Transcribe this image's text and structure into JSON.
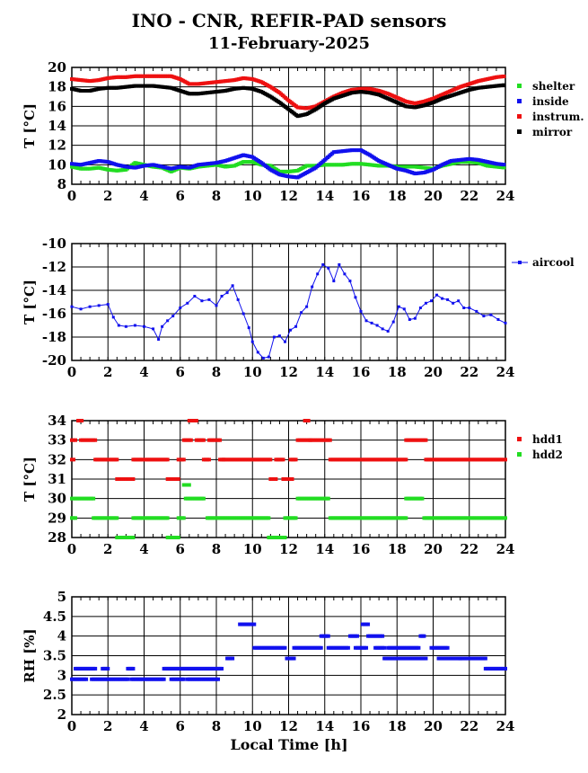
{
  "title": "INO - CNR, REFIR-PAD sensors",
  "subtitle": "11-February-2025",
  "xlabel": "Local Time [h]",
  "colors": {
    "green": "#22dd22",
    "blue": "#1111ee",
    "red": "#ee1111",
    "black": "#000000"
  },
  "chart_data": [
    {
      "type": "scatter",
      "ylabel": "T [°C]",
      "xlim": [
        0,
        24
      ],
      "ylim": [
        8,
        20
      ],
      "xticks": [
        0,
        2,
        4,
        6,
        8,
        10,
        12,
        14,
        16,
        18,
        20,
        22,
        24
      ],
      "yticks": [
        8,
        10,
        12,
        14,
        16,
        18,
        20
      ],
      "grid": true,
      "legend": "right",
      "series": [
        {
          "name": "shelter",
          "color": "#22dd22",
          "x": [
            0,
            0.5,
            1,
            1.5,
            2,
            2.5,
            3,
            3.5,
            4,
            4.5,
            5,
            5.5,
            6,
            6.5,
            7,
            7.5,
            8,
            8.5,
            9,
            9.5,
            10,
            10.5,
            11,
            11.5,
            12,
            12.5,
            13,
            13.5,
            14,
            14.5,
            15,
            15.5,
            16,
            16.5,
            17,
            17.5,
            18,
            18.5,
            19,
            19.5,
            20,
            20.5,
            21,
            21.5,
            22,
            22.5,
            23,
            23.5,
            24
          ],
          "y": [
            9.8,
            9.6,
            9.6,
            9.7,
            9.5,
            9.4,
            9.5,
            10.2,
            10,
            9.8,
            9.7,
            9.3,
            9.7,
            9.6,
            9.8,
            9.9,
            10,
            9.8,
            9.9,
            10.3,
            10.3,
            10,
            9.9,
            9.3,
            9.3,
            9.4,
            9.9,
            9.9,
            10,
            10,
            10,
            10.1,
            10.1,
            10,
            9.9,
            9.9,
            9.8,
            9.8,
            9.8,
            9.7,
            9.6,
            9.9,
            10.1,
            10.3,
            10.3,
            10.2,
            9.9,
            9.8,
            9.7
          ]
        },
        {
          "name": "inside",
          "color": "#1111ee",
          "x": [
            0,
            0.5,
            1,
            1.5,
            2,
            2.5,
            3,
            3.5,
            4,
            4.5,
            5,
            5.5,
            6,
            6.5,
            7,
            7.5,
            8,
            8.5,
            9,
            9.5,
            10,
            10.5,
            11,
            11.5,
            12,
            12.5,
            13,
            13.5,
            14,
            14.5,
            15,
            15.5,
            16,
            16.5,
            17,
            17.5,
            18,
            18.5,
            19,
            19.5,
            20,
            20.5,
            21,
            21.5,
            22,
            22.5,
            23,
            23.5,
            24
          ],
          "y": [
            10.1,
            10,
            10.2,
            10.4,
            10.3,
            10,
            9.8,
            9.7,
            9.9,
            10,
            9.8,
            9.6,
            9.8,
            9.7,
            10,
            10.1,
            10.2,
            10.4,
            10.7,
            11,
            10.8,
            10.2,
            9.5,
            9,
            8.8,
            8.7,
            9.2,
            9.7,
            10.5,
            11.3,
            11.4,
            11.5,
            11.5,
            11,
            10.4,
            10,
            9.6,
            9.4,
            9.1,
            9.2,
            9.5,
            10,
            10.4,
            10.5,
            10.6,
            10.5,
            10.3,
            10.1,
            10
          ]
        },
        {
          "name": "instrum.",
          "color": "#ee1111",
          "x": [
            0,
            0.5,
            1,
            1.5,
            2,
            2.5,
            3,
            3.5,
            4,
            4.5,
            5,
            5.5,
            6,
            6.5,
            7,
            7.5,
            8,
            8.5,
            9,
            9.5,
            10,
            10.5,
            11,
            11.5,
            12,
            12.5,
            13,
            13.5,
            14,
            14.5,
            15,
            15.5,
            16,
            16.5,
            17,
            17.5,
            18,
            18.5,
            19,
            19.5,
            20,
            20.5,
            21,
            21.5,
            22,
            22.5,
            23,
            23.5,
            24
          ],
          "y": [
            18.8,
            18.7,
            18.6,
            18.7,
            18.9,
            19,
            19,
            19.1,
            19.1,
            19.1,
            19.1,
            19.1,
            18.8,
            18.3,
            18.3,
            18.4,
            18.5,
            18.6,
            18.7,
            18.9,
            18.8,
            18.5,
            18,
            17.4,
            16.6,
            15.9,
            15.8,
            16,
            16.5,
            17,
            17.4,
            17.7,
            17.8,
            17.8,
            17.6,
            17.3,
            16.9,
            16.5,
            16.3,
            16.5,
            16.8,
            17.2,
            17.6,
            18,
            18.3,
            18.6,
            18.8,
            19,
            19.1
          ]
        },
        {
          "name": "mirror",
          "color": "#000000",
          "x": [
            0,
            0.5,
            1,
            1.5,
            2,
            2.5,
            3,
            3.5,
            4,
            4.5,
            5,
            5.5,
            6,
            6.5,
            7,
            7.5,
            8,
            8.5,
            9,
            9.5,
            10,
            10.5,
            11,
            11.5,
            12,
            12.5,
            13,
            13.5,
            14,
            14.5,
            15,
            15.5,
            16,
            16.5,
            17,
            17.5,
            18,
            18.5,
            19,
            19.5,
            20,
            20.5,
            21,
            21.5,
            22,
            22.5,
            23,
            23.5,
            24
          ],
          "y": [
            17.8,
            17.6,
            17.6,
            17.8,
            17.9,
            17.9,
            18,
            18.1,
            18.1,
            18.1,
            18,
            17.9,
            17.6,
            17.3,
            17.3,
            17.4,
            17.5,
            17.6,
            17.8,
            17.9,
            17.8,
            17.5,
            17,
            16.4,
            15.7,
            15,
            15.2,
            15.7,
            16.3,
            16.8,
            17.1,
            17.4,
            17.5,
            17.4,
            17.2,
            16.8,
            16.4,
            16,
            15.9,
            16.1,
            16.4,
            16.8,
            17.1,
            17.4,
            17.7,
            17.9,
            18,
            18.1,
            18.2
          ]
        }
      ]
    },
    {
      "type": "line",
      "ylabel": "T [°C]",
      "xlim": [
        0,
        24
      ],
      "ylim": [
        -20,
        -10
      ],
      "xticks": [
        0,
        2,
        4,
        6,
        8,
        10,
        12,
        14,
        16,
        18,
        20,
        22,
        24
      ],
      "yticks": [
        -20,
        -18,
        -16,
        -14,
        -12,
        -10
      ],
      "grid": true,
      "legend": "right",
      "series": [
        {
          "name": "aircool",
          "color": "#1111ee",
          "x": [
            0,
            0.5,
            1,
            1.5,
            2,
            2.3,
            2.6,
            3,
            3.5,
            4,
            4.5,
            4.8,
            5,
            5.3,
            5.6,
            6,
            6.4,
            6.8,
            7.2,
            7.6,
            8,
            8.3,
            8.6,
            8.9,
            9.2,
            9.5,
            9.8,
            10,
            10.3,
            10.6,
            10.9,
            11.2,
            11.5,
            11.8,
            12.1,
            12.4,
            12.7,
            13,
            13.3,
            13.6,
            13.9,
            14.2,
            14.5,
            14.8,
            15.1,
            15.4,
            15.7,
            16,
            16.3,
            16.6,
            16.9,
            17.2,
            17.5,
            17.8,
            18.1,
            18.4,
            18.7,
            19,
            19.3,
            19.6,
            19.9,
            20.2,
            20.5,
            20.8,
            21.1,
            21.4,
            21.7,
            22,
            22.4,
            22.8,
            23.2,
            23.6,
            24
          ],
          "y": [
            -15.4,
            -15.6,
            -15.4,
            -15.3,
            -15.2,
            -16.3,
            -17,
            -17.1,
            -17,
            -17.1,
            -17.3,
            -18.2,
            -17.1,
            -16.6,
            -16.2,
            -15.5,
            -15.1,
            -14.5,
            -14.9,
            -14.8,
            -15.3,
            -14.5,
            -14.2,
            -13.6,
            -14.8,
            -16,
            -17.2,
            -18.4,
            -19.3,
            -19.8,
            -19.7,
            -18,
            -17.9,
            -18.4,
            -17.4,
            -17.1,
            -15.9,
            -15.4,
            -13.7,
            -12.6,
            -11.8,
            -12.1,
            -13.2,
            -11.8,
            -12.6,
            -13.2,
            -14.6,
            -15.8,
            -16.6,
            -16.8,
            -17,
            -17.3,
            -17.5,
            -16.7,
            -15.4,
            -15.6,
            -16.5,
            -16.4,
            -15.5,
            -15.1,
            -14.9,
            -14.4,
            -14.7,
            -14.8,
            -15.1,
            -14.9,
            -15.5,
            -15.5,
            -15.8,
            -16.2,
            -16.1,
            -16.5,
            -16.8
          ]
        }
      ]
    },
    {
      "type": "scatter",
      "ylabel": "T [°C]",
      "xlim": [
        0,
        24
      ],
      "ylim": [
        28,
        34
      ],
      "xticks": [
        0,
        2,
        4,
        6,
        8,
        10,
        12,
        14,
        16,
        18,
        20,
        22,
        24
      ],
      "yticks": [
        28,
        29,
        30,
        31,
        32,
        33,
        34
      ],
      "grid": true,
      "legend": "right",
      "series": [
        {
          "name": "hdd1",
          "color": "#ee1111",
          "segments": [
            [
              0,
              0.1,
              32
            ],
            [
              0,
              0.2,
              33
            ],
            [
              0.35,
              0.55,
              34
            ],
            [
              0.5,
              1.3,
              33
            ],
            [
              1.3,
              2.5,
              32
            ],
            [
              2.5,
              3.4,
              31
            ],
            [
              3.4,
              5.3,
              32
            ],
            [
              5.3,
              5.9,
              31
            ],
            [
              5.9,
              6.2,
              32
            ],
            [
              6.2,
              6.6,
              33
            ],
            [
              6.5,
              6.9,
              34
            ],
            [
              6.9,
              7.3,
              33
            ],
            [
              7.3,
              7.6,
              32
            ],
            [
              7.6,
              8.2,
              33
            ],
            [
              8.2,
              8.4,
              32
            ],
            [
              8.4,
              11,
              32
            ],
            [
              11,
              11.3,
              31
            ],
            [
              11.3,
              11.7,
              32
            ],
            [
              11.7,
              11.9,
              31
            ],
            [
              11.9,
              12.2,
              31
            ],
            [
              12.1,
              12.4,
              32
            ],
            [
              12.5,
              13.2,
              33
            ],
            [
              12.9,
              13.1,
              34
            ],
            [
              13.2,
              14.3,
              33
            ],
            [
              14.3,
              18.5,
              32
            ],
            [
              18.5,
              19.6,
              33
            ],
            [
              19.6,
              24,
              32
            ]
          ]
        },
        {
          "name": "hdd2",
          "color": "#22dd22",
          "segments": [
            [
              0,
              0.2,
              29
            ],
            [
              0,
              1.2,
              30
            ],
            [
              1.2,
              2.5,
              29
            ],
            [
              2.5,
              3.4,
              28
            ],
            [
              3.4,
              5.3,
              29
            ],
            [
              5.3,
              5.9,
              28
            ],
            [
              5.9,
              6.2,
              29
            ],
            [
              6.2,
              6.5,
              30.7
            ],
            [
              6.3,
              7.3,
              30
            ],
            [
              7.5,
              10.9,
              29
            ],
            [
              10.9,
              11.8,
              28
            ],
            [
              11.8,
              12.4,
              29
            ],
            [
              12.5,
              14.2,
              30
            ],
            [
              14.3,
              18.5,
              29
            ],
            [
              18.5,
              19.4,
              30
            ],
            [
              19.5,
              24,
              29
            ]
          ]
        }
      ]
    },
    {
      "type": "scatter",
      "ylabel": "RH [%]",
      "xlim": [
        0,
        24
      ],
      "ylim": [
        2,
        5
      ],
      "xticks": [
        0,
        2,
        4,
        6,
        8,
        10,
        12,
        14,
        16,
        18,
        20,
        22,
        24
      ],
      "yticks": [
        2,
        2.5,
        3,
        3.5,
        4,
        4.5,
        5
      ],
      "ytick_labels": [
        "2",
        "2.5",
        "3",
        "3.5",
        "4",
        "4.5",
        "5"
      ],
      "grid": true,
      "legend": "none",
      "series": [
        {
          "name": "",
          "color": "#1111ee",
          "segments": [
            [
              0,
              0.4,
              2.9
            ],
            [
              0.2,
              1.3,
              3.17
            ],
            [
              0.5,
              0.8,
              2.9
            ],
            [
              1.7,
              2.0,
              3.17
            ],
            [
              1.1,
              3.1,
              2.9
            ],
            [
              3.1,
              3.4,
              3.17
            ],
            [
              3.3,
              5.1,
              2.9
            ],
            [
              5.1,
              6.4,
              3.17
            ],
            [
              5.5,
              6.2,
              2.9
            ],
            [
              6.4,
              7.4,
              2.9
            ],
            [
              6.5,
              8.3,
              3.17
            ],
            [
              7.5,
              8.1,
              2.9
            ],
            [
              8.6,
              8.9,
              3.43
            ],
            [
              9.3,
              10.1,
              4.3
            ],
            [
              10.1,
              11.8,
              3.7
            ],
            [
              11.9,
              12.3,
              3.43
            ],
            [
              12.3,
              13.8,
              3.7
            ],
            [
              13.8,
              14.2,
              4
            ],
            [
              14.2,
              15.3,
              3.7
            ],
            [
              15.4,
              15.8,
              4
            ],
            [
              15.7,
              16.3,
              3.7
            ],
            [
              16.1,
              16.4,
              4.3
            ],
            [
              16.4,
              17.2,
              4
            ],
            [
              16.8,
              17.3,
              3.7
            ],
            [
              17.3,
              17.5,
              3.43
            ],
            [
              17.5,
              19.2,
              3.7
            ],
            [
              17.6,
              19.6,
              3.43
            ],
            [
              19.3,
              19.5,
              4
            ],
            [
              19.9,
              20.8,
              3.7
            ],
            [
              20.3,
              21.5,
              3.43
            ],
            [
              21.5,
              22.9,
              3.43
            ],
            [
              22.9,
              24,
              3.17
            ]
          ]
        }
      ]
    }
  ]
}
